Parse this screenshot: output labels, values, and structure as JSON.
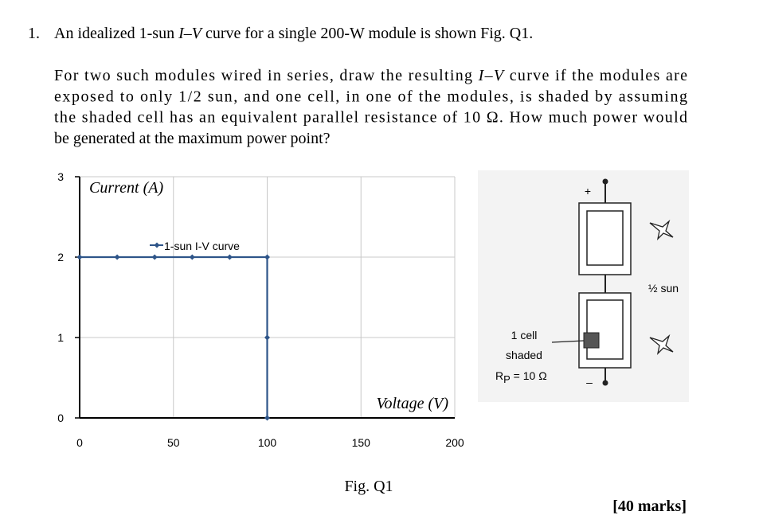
{
  "question": {
    "number": "1.",
    "intro": [
      "An idealized 1-sun ",
      "I–V",
      " curve for a single 200-W module is shown Fig. Q1."
    ],
    "paragraph": [
      [
        "For two such modules wired in series, draw the resulting ",
        "I–V",
        " curve if the modules are"
      ],
      [
        "exposed to only 1/2 sun, and one cell, in one of the modules, is shaded by assuming"
      ],
      [
        "the shaded cell has an equivalent parallel resistance of 10 Ω. How much power would"
      ],
      [
        "be generated at the maximum power point?"
      ]
    ]
  },
  "chart_data": {
    "type": "line",
    "y_label": "Current (A)",
    "x_label": "Voltage (V)",
    "x": [
      0,
      20,
      40,
      60,
      80,
      100,
      100,
      100
    ],
    "series": [
      {
        "name": "1-sun I-V curve",
        "color": "#2e5589",
        "values": [
          2,
          2,
          2,
          2,
          2,
          2,
          1,
          0
        ]
      }
    ],
    "xlim": [
      0,
      200
    ],
    "ylim": [
      0,
      3
    ],
    "xticks": [
      0,
      50,
      100,
      150,
      200
    ],
    "yticks": [
      0,
      1,
      2,
      3
    ],
    "grid": true
  },
  "diagram": {
    "positive": "+",
    "negative": "–",
    "sun": "½ sun",
    "shaded_label": [
      "1 cell",
      "shaded"
    ],
    "resistance": {
      "symbol": "R",
      "subscript": "P",
      "rest": " = 10 Ω"
    }
  },
  "caption": "Fig. Q1",
  "marks": "[40 marks]"
}
